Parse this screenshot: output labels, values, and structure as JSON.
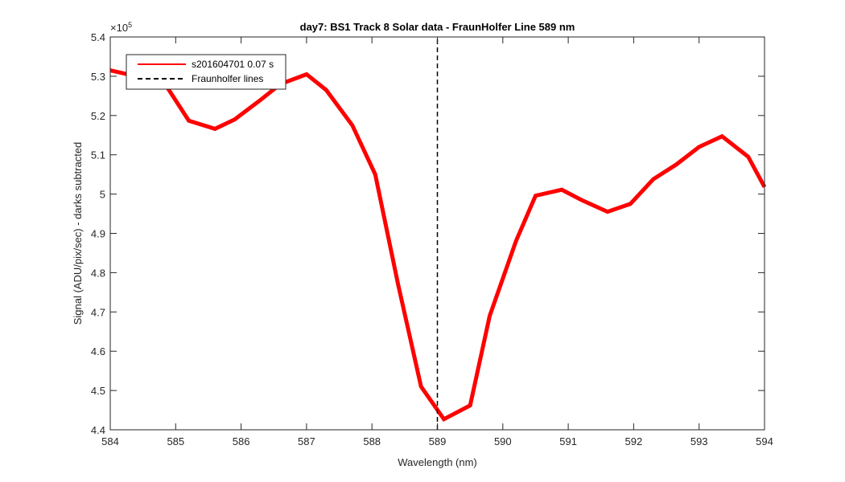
{
  "chart_data": {
    "type": "line",
    "title": "day7: BS1  Track 8 Solar data - FraunHolfer Line 589 nm",
    "xlabel": "Wavelength (nm)",
    "ylabel": "Signal (ADU/pix/sec) - darks subtracted",
    "y_exponent_label": "×10",
    "y_exponent_power": "5",
    "xlim": [
      584,
      594
    ],
    "ylim": [
      4.4,
      5.4
    ],
    "xticks": [
      584,
      585,
      586,
      587,
      588,
      589,
      590,
      591,
      592,
      593,
      594
    ],
    "yticks": [
      4.4,
      4.5,
      4.6,
      4.7,
      4.8,
      4.9,
      5,
      5.1,
      5.2,
      5.3,
      5.4
    ],
    "ytick_labels": [
      "4.4",
      "4.5",
      "4.6",
      "4.7",
      "4.8",
      "4.9",
      "5",
      "5.1",
      "5.2",
      "5.3",
      "5.4"
    ],
    "grid": false,
    "legend_position": "top-left",
    "series": [
      {
        "name": "s201604701 0.07 s",
        "color": "#ff0000",
        "x": [
          584.0,
          584.4,
          584.8,
          585.2,
          585.6,
          585.9,
          586.3,
          586.6,
          587.0,
          587.3,
          587.7,
          588.05,
          588.4,
          588.75,
          589.1,
          589.5,
          589.8,
          590.2,
          590.5,
          590.9,
          591.2,
          591.6,
          591.95,
          592.3,
          592.65,
          593.0,
          593.35,
          593.75,
          594.0
        ],
        "y": [
          5.315,
          5.3,
          5.29,
          5.187,
          5.166,
          5.19,
          5.24,
          5.28,
          5.305,
          5.265,
          5.175,
          5.05,
          4.77,
          4.51,
          4.427,
          4.462,
          4.69,
          4.88,
          4.996,
          5.011,
          4.985,
          4.955,
          4.975,
          5.038,
          5.075,
          5.12,
          5.147,
          5.095,
          5.018
        ]
      },
      {
        "name": "Fraunholfer lines",
        "color": "#000000",
        "style": "dashed",
        "x": [
          589.0,
          589.0
        ],
        "y": [
          4.4,
          5.4
        ]
      }
    ]
  }
}
